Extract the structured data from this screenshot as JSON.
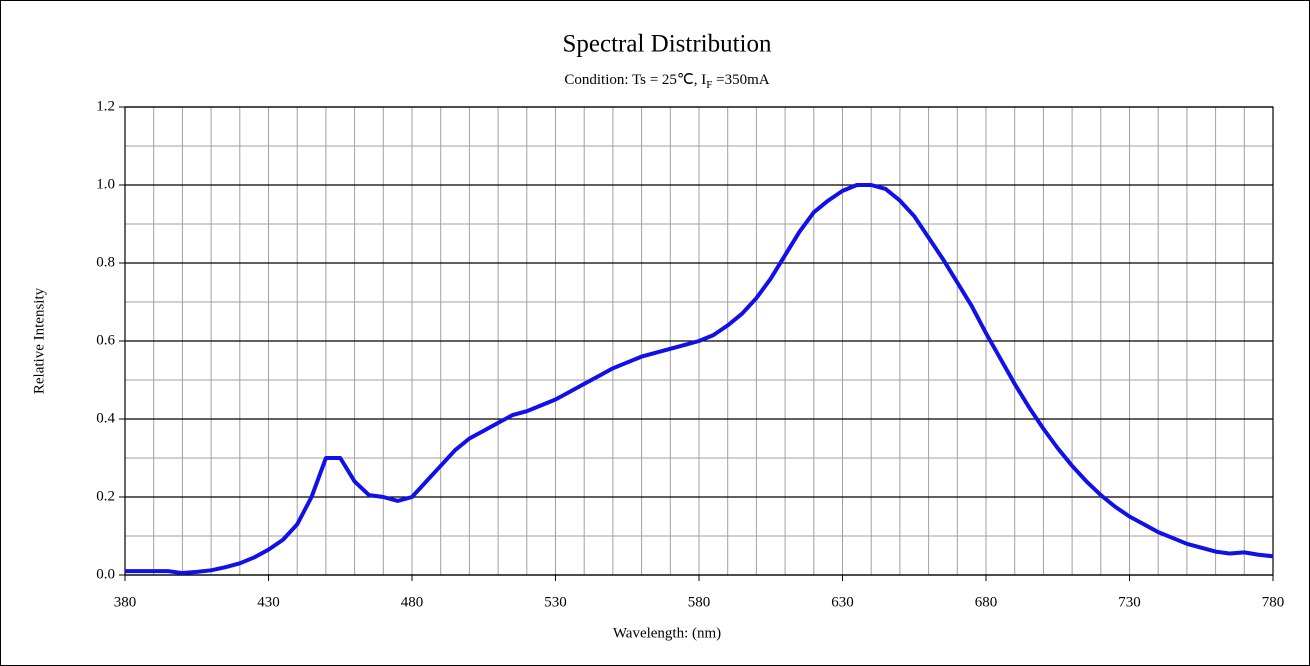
{
  "chart_data": {
    "type": "line",
    "title": "Spectral Distribution",
    "subtitle_parts": [
      "Condition: Ts = 25℃, I",
      "F",
      " =350mA"
    ],
    "x_label": "Wavelength:  (nm)",
    "y_label": "Relative Intensity",
    "color": "#1010e8",
    "x": [
      380,
      385,
      390,
      395,
      400,
      405,
      410,
      415,
      420,
      425,
      430,
      435,
      440,
      445,
      450,
      455,
      460,
      465,
      470,
      475,
      480,
      485,
      490,
      495,
      500,
      505,
      510,
      515,
      520,
      525,
      530,
      535,
      540,
      545,
      550,
      555,
      560,
      565,
      570,
      575,
      580,
      585,
      590,
      595,
      600,
      605,
      610,
      615,
      620,
      625,
      630,
      635,
      640,
      645,
      650,
      655,
      660,
      665,
      670,
      675,
      680,
      685,
      690,
      695,
      700,
      705,
      710,
      715,
      720,
      725,
      730,
      735,
      740,
      745,
      750,
      755,
      760,
      765,
      770,
      775,
      780
    ],
    "values": [
      0.01,
      0.01,
      0.01,
      0.01,
      0.005,
      0.008,
      0.012,
      0.02,
      0.03,
      0.045,
      0.065,
      0.09,
      0.13,
      0.2,
      0.3,
      0.3,
      0.24,
      0.205,
      0.2,
      0.19,
      0.2,
      0.24,
      0.28,
      0.32,
      0.35,
      0.37,
      0.39,
      0.41,
      0.42,
      0.435,
      0.45,
      0.47,
      0.49,
      0.51,
      0.53,
      0.545,
      0.56,
      0.57,
      0.58,
      0.59,
      0.6,
      0.615,
      0.64,
      0.67,
      0.71,
      0.76,
      0.82,
      0.88,
      0.93,
      0.96,
      0.985,
      1.0,
      1.0,
      0.99,
      0.96,
      0.92,
      0.865,
      0.81,
      0.75,
      0.69,
      0.62,
      0.555,
      0.49,
      0.43,
      0.375,
      0.325,
      0.28,
      0.24,
      0.205,
      0.175,
      0.15,
      0.13,
      0.11,
      0.095,
      0.08,
      0.07,
      0.06,
      0.055,
      0.058,
      0.052,
      0.048
    ],
    "xlim": [
      380,
      780
    ],
    "xticks": [
      380,
      430,
      480,
      530,
      580,
      630,
      680,
      730,
      780
    ],
    "xminorticks": [
      390,
      400,
      410,
      420,
      440,
      450,
      460,
      470,
      490,
      500,
      510,
      520,
      540,
      550,
      560,
      570,
      590,
      600,
      610,
      620,
      640,
      650,
      660,
      670,
      690,
      700,
      710,
      720,
      740,
      750,
      760,
      770
    ],
    "ylim": [
      0,
      1.2
    ],
    "yticks": [
      {
        "value": 0,
        "label": "0.0"
      },
      0.2,
      0.4,
      0.6,
      0.8,
      {
        "value": 1,
        "label": "1.0"
      },
      1.2
    ],
    "yminorticks": [
      0.1,
      0.3,
      0.5,
      0.7,
      0.9,
      1.1
    ],
    "grid": true
  }
}
